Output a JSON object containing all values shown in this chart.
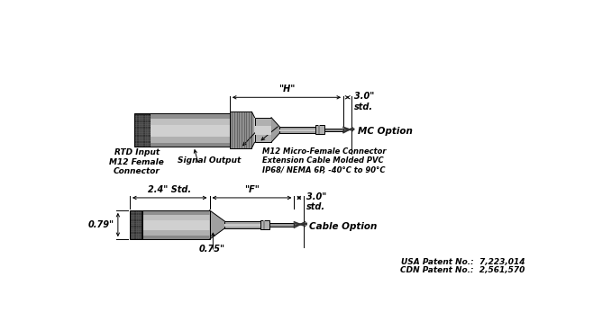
{
  "background_color": "#ffffff",
  "patent_line1": "USA Patent No.:  7,223,014",
  "patent_line2": "CDN Patent No.:  2,561,570",
  "cable_option_label": "Cable Option",
  "mc_option_label": "MC Option",
  "dim_075": "0.75\"",
  "dim_079": "0.79\"",
  "dim_24": "2.4\" Std.",
  "dim_F": "\"F\"",
  "dim_30_top": "3.0\"\nstd.",
  "dim_H": "\"H\"",
  "dim_30_bot": "3.0\"\nstd.",
  "rtd_label": "RTD Input\nM12 Female\nConnector",
  "signal_output_label": "Signal Output",
  "m12_label": "M12 Micro-Female Connector\nExtension Cable Molded PVC\nIP68/ NEMA 6P, -40°C to 90°C",
  "body_color_dark": "#1a1a1a",
  "body_color_dots": "#333333",
  "body_color_mid": "#888888",
  "body_color_light": "#b8b8b8",
  "body_color_highlight": "#d8d8d8",
  "body_color_white": "#e8e8e8",
  "line_color": "#000000",
  "font_color": "#000000"
}
